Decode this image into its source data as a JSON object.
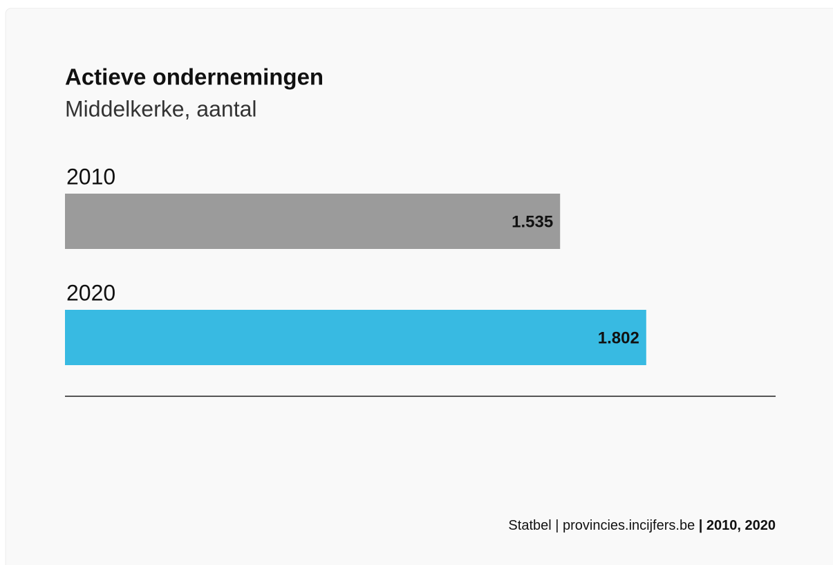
{
  "chart_data": {
    "type": "bar",
    "orientation": "horizontal",
    "title": "Actieve ondernemingen",
    "subtitle": "Middelkerke, aantal",
    "categories": [
      "2010",
      "2020"
    ],
    "values": [
      1535,
      1802
    ],
    "value_labels": [
      "1.535",
      "1.802"
    ],
    "colors": [
      "#9b9b9b",
      "#38bae2"
    ],
    "source": [
      "Statbel | provincies.incijfers.be ",
      "| 2010, 2020"
    ]
  }
}
